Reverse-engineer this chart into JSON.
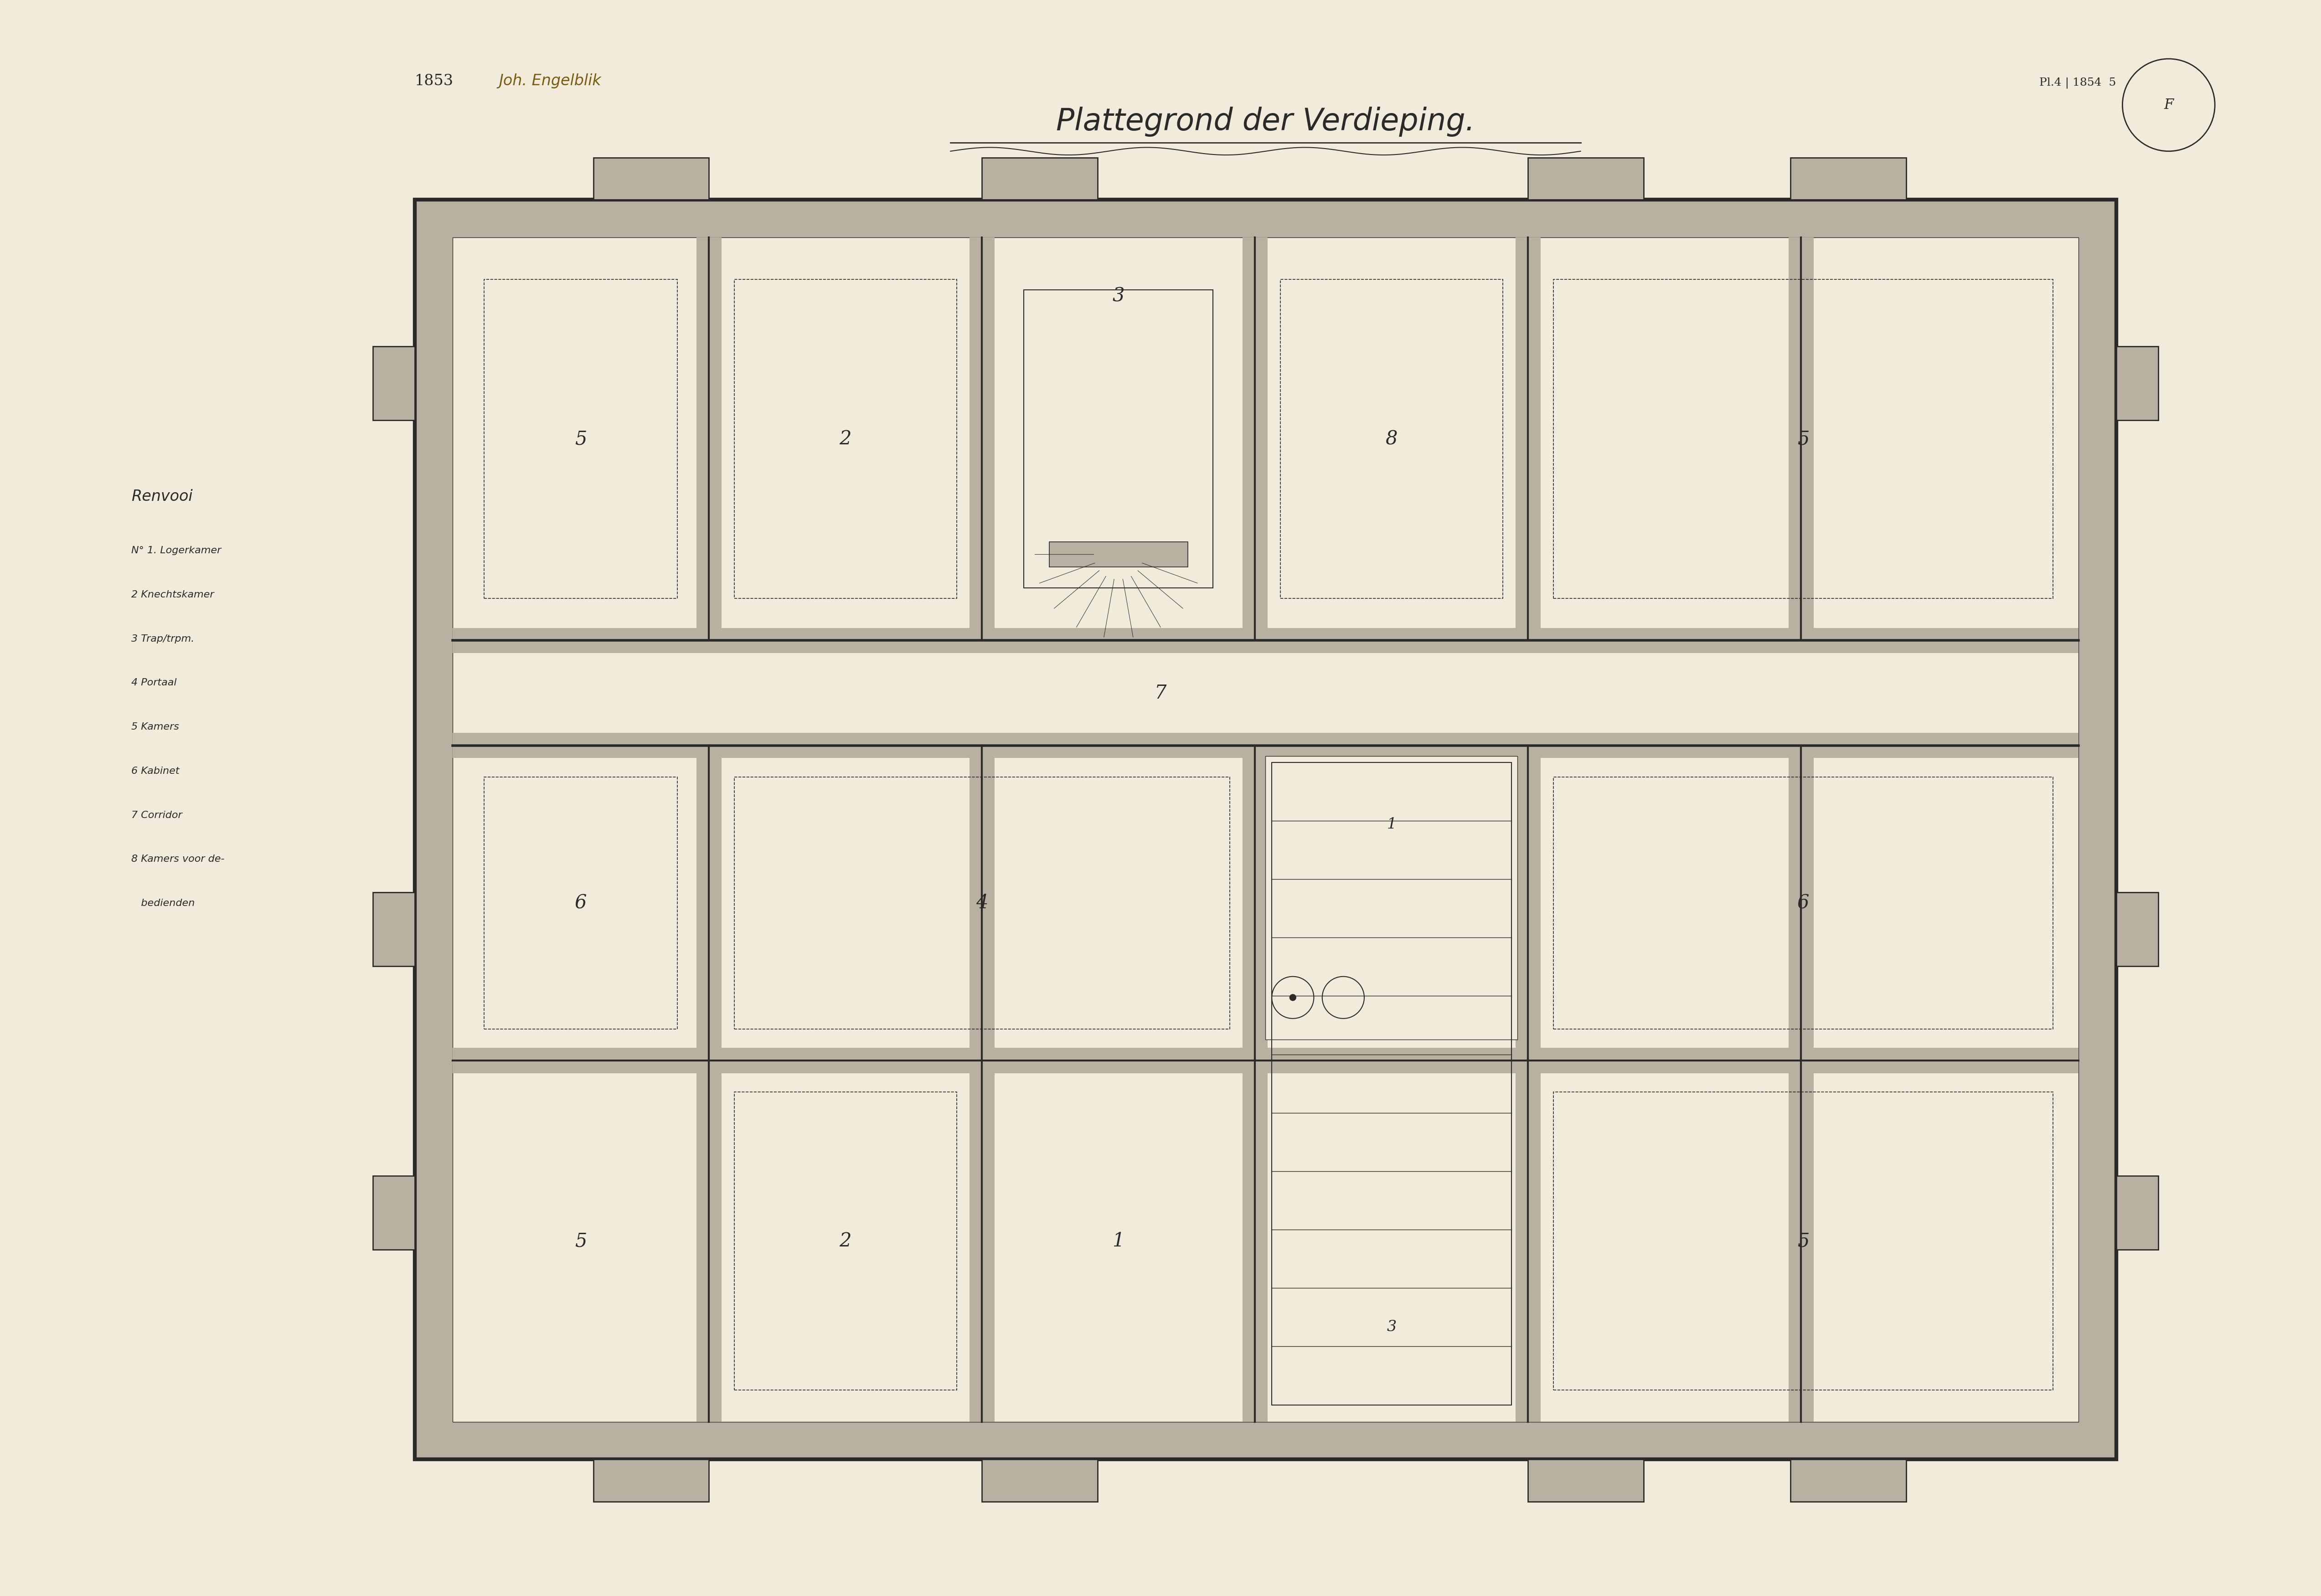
{
  "title": "Plattegrond der Verdieping.",
  "author": "Joh. Engelblik",
  "year": "1853",
  "bg_color": "#f0ebda",
  "wall_fill": "#b8b0a0",
  "inner_fill": "#f0ebda",
  "line_color": "#2a2a2a",
  "legend_title": "Renvooi",
  "legend_items": [
    "N° 1. Logerkamer",
    "2 Knechtskamer",
    "3 Trap/trpm.",
    "4 Portaal",
    "5 Kamers",
    "6 Kabinet",
    "7 Corridor",
    "8 Kamers voor de-",
    "   bedienden"
  ]
}
